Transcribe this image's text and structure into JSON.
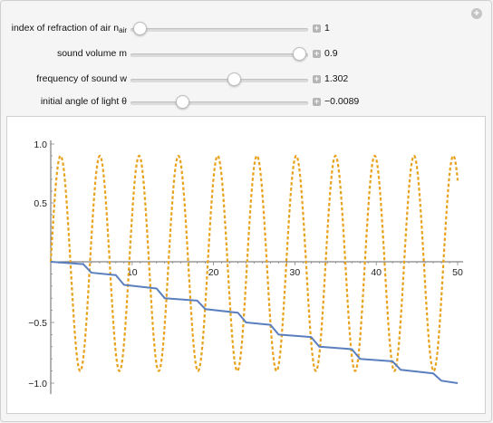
{
  "controls": [
    {
      "label": "index of refraction of air n",
      "sub": "air",
      "value": "1",
      "fraction": 0.05
    },
    {
      "label": "sound volume m",
      "sub": "",
      "value": "0.9",
      "fraction": 0.95
    },
    {
      "label": "frequency of sound w",
      "sub": "",
      "value": "1.302",
      "fraction": 0.58
    },
    {
      "label": "initial angle of light θ",
      "sub": "",
      "value": "−0.0089",
      "fraction": 0.29
    }
  ],
  "colors": {
    "sound": "#e8a21c",
    "light": "#5a7fbf"
  },
  "chart_data": {
    "type": "line",
    "xlim": [
      0,
      50
    ],
    "ylim": [
      -1.0,
      1.0
    ],
    "x_ticks": [
      10,
      20,
      30,
      40,
      50
    ],
    "x_tick_labels": [
      "10",
      "20",
      "30",
      "40",
      "50"
    ],
    "y_ticks": [
      -1.0,
      -0.5,
      0.5,
      1.0
    ],
    "y_tick_labels": [
      "−1.0",
      "−0.5",
      "0.5",
      "1.0"
    ],
    "series": [
      {
        "style": "dashed",
        "color": "#e8a21c",
        "amplitude": 0.9,
        "frequency": 1.302,
        "x_end": 50
      },
      {
        "style": "solid",
        "color": "#5a7fbf",
        "steps": [
          [
            0,
            0
          ],
          [
            4,
            -0.02
          ],
          [
            5,
            -0.09
          ],
          [
            8,
            -0.11
          ],
          [
            9,
            -0.19
          ],
          [
            13,
            -0.22
          ],
          [
            14,
            -0.3
          ],
          [
            18,
            -0.32
          ],
          [
            19,
            -0.39
          ],
          [
            23,
            -0.42
          ],
          [
            24,
            -0.5
          ],
          [
            27,
            -0.52
          ],
          [
            28,
            -0.6
          ],
          [
            32,
            -0.62
          ],
          [
            33,
            -0.7
          ],
          [
            37,
            -0.72
          ],
          [
            38,
            -0.8
          ],
          [
            42,
            -0.82
          ],
          [
            43,
            -0.89
          ],
          [
            47,
            -0.92
          ],
          [
            48,
            -0.98
          ],
          [
            50,
            -1.0
          ]
        ]
      }
    ]
  }
}
